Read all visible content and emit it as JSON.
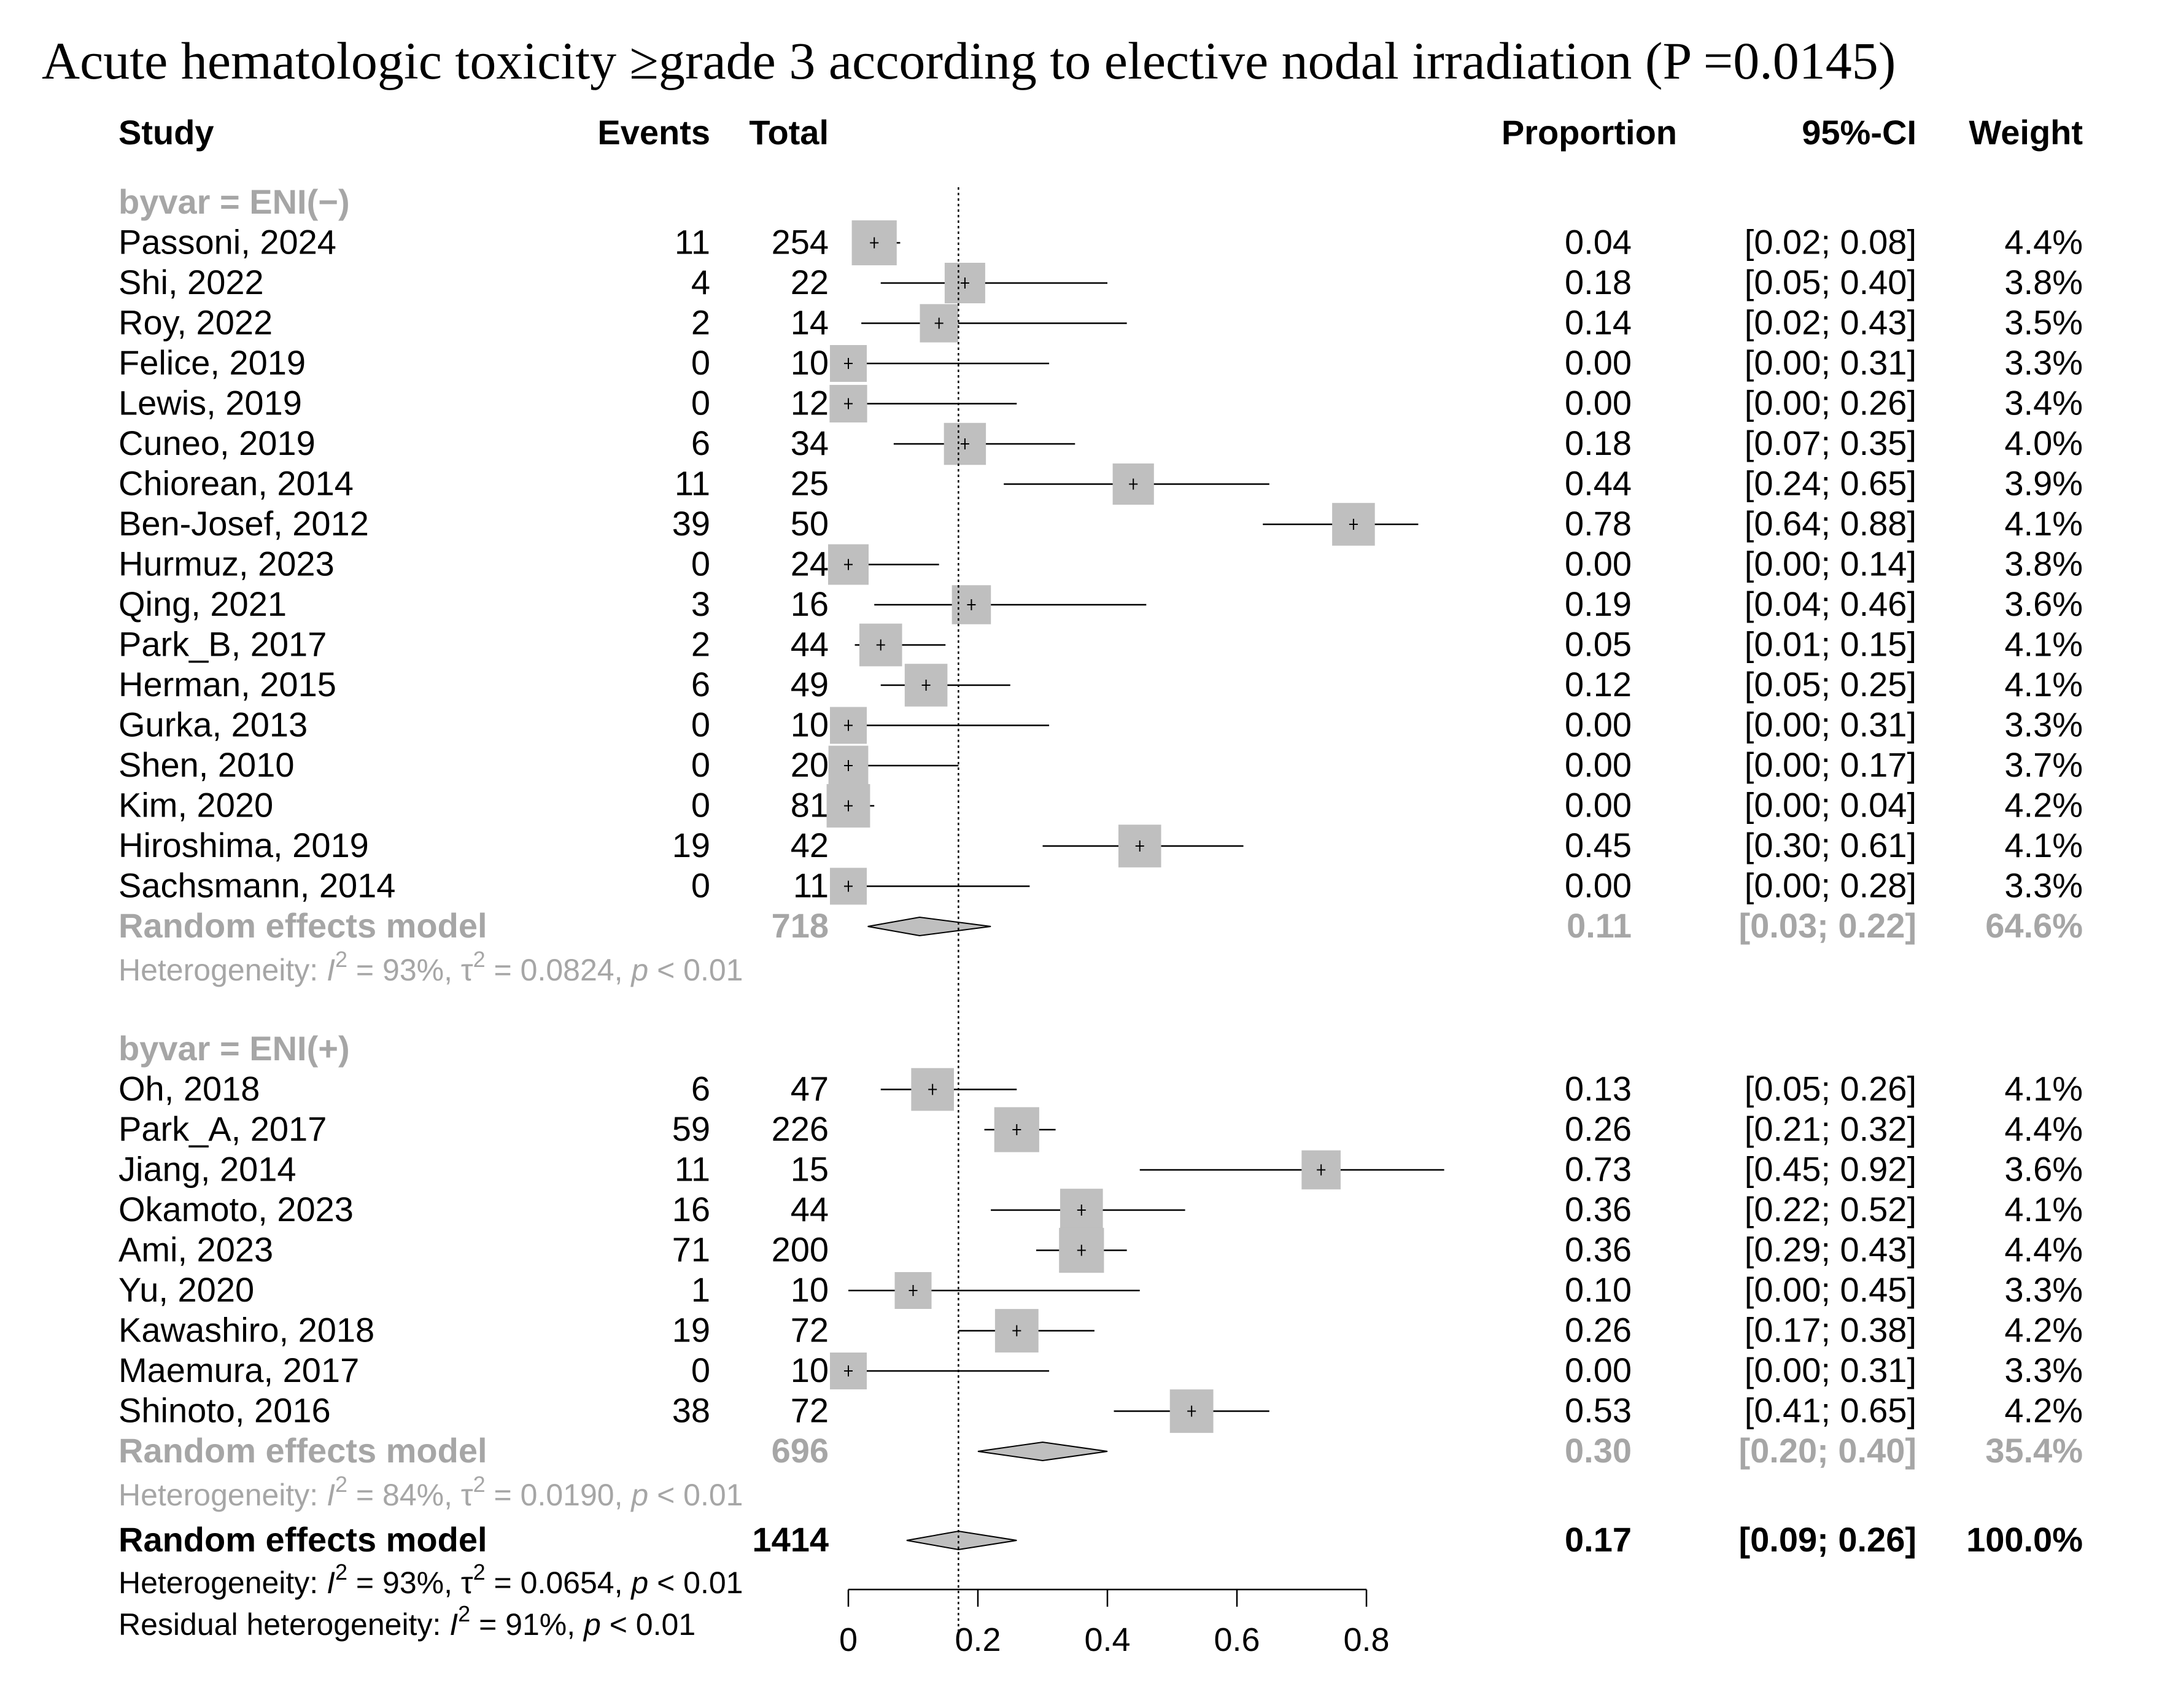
{
  "chart_data": {
    "type": "forest",
    "title": "Acute hematologic toxicity ≥grade 3 according to elective nodal irradiation (P =0.0145)",
    "headers": {
      "study": "Study",
      "events": "Events",
      "total": "Total",
      "proportion": "Proportion",
      "ci": "95%-CI",
      "weight": "Weight"
    },
    "xaxis": {
      "min": 0,
      "max": 0.8,
      "ticks": [
        0,
        0.2,
        0.4,
        0.6,
        0.8
      ],
      "tick_labels": [
        "0",
        "0.2",
        "0.4",
        "0.6",
        "0.8"
      ],
      "reference_line": 0.17
    },
    "groups": [
      {
        "label": "byvar = ENI(−)",
        "studies": [
          {
            "study": "Passoni, 2024",
            "events": "11",
            "total": "254",
            "prop": 0.04,
            "lower": 0.02,
            "upper": 0.08,
            "prop_text": "0.04",
            "ci_text": "[0.02; 0.08]",
            "weight": "4.4%",
            "weight_value": 4.4
          },
          {
            "study": "Shi, 2022",
            "events": "4",
            "total": "22",
            "prop": 0.18,
            "lower": 0.05,
            "upper": 0.4,
            "prop_text": "0.18",
            "ci_text": "[0.05; 0.40]",
            "weight": "3.8%",
            "weight_value": 3.8
          },
          {
            "study": "Roy, 2022",
            "events": "2",
            "total": "14",
            "prop": 0.14,
            "lower": 0.02,
            "upper": 0.43,
            "prop_text": "0.14",
            "ci_text": "[0.02; 0.43]",
            "weight": "3.5%",
            "weight_value": 3.5
          },
          {
            "study": "Felice, 2019",
            "events": "0",
            "total": "10",
            "prop": 0.0,
            "lower": 0.0,
            "upper": 0.31,
            "prop_text": "0.00",
            "ci_text": "[0.00; 0.31]",
            "weight": "3.3%",
            "weight_value": 3.3
          },
          {
            "study": "Lewis, 2019",
            "events": "0",
            "total": "12",
            "prop": 0.0,
            "lower": 0.0,
            "upper": 0.26,
            "prop_text": "0.00",
            "ci_text": "[0.00; 0.26]",
            "weight": "3.4%",
            "weight_value": 3.4
          },
          {
            "study": "Cuneo, 2019",
            "events": "6",
            "total": "34",
            "prop": 0.18,
            "lower": 0.07,
            "upper": 0.35,
            "prop_text": "0.18",
            "ci_text": "[0.07; 0.35]",
            "weight": "4.0%",
            "weight_value": 4.0
          },
          {
            "study": "Chiorean, 2014",
            "events": "11",
            "total": "25",
            "prop": 0.44,
            "lower": 0.24,
            "upper": 0.65,
            "prop_text": "0.44",
            "ci_text": "[0.24; 0.65]",
            "weight": "3.9%",
            "weight_value": 3.9
          },
          {
            "study": "Ben-Josef, 2012",
            "events": "39",
            "total": "50",
            "prop": 0.78,
            "lower": 0.64,
            "upper": 0.88,
            "prop_text": "0.78",
            "ci_text": "[0.64; 0.88]",
            "weight": "4.1%",
            "weight_value": 4.1
          },
          {
            "study": "Hurmuz, 2023",
            "events": "0",
            "total": "24",
            "prop": 0.0,
            "lower": 0.0,
            "upper": 0.14,
            "prop_text": "0.00",
            "ci_text": "[0.00; 0.14]",
            "weight": "3.8%",
            "weight_value": 3.8
          },
          {
            "study": "Qing, 2021",
            "events": "3",
            "total": "16",
            "prop": 0.19,
            "lower": 0.04,
            "upper": 0.46,
            "prop_text": "0.19",
            "ci_text": "[0.04; 0.46]",
            "weight": "3.6%",
            "weight_value": 3.6
          },
          {
            "study": "Park_B, 2017",
            "events": "2",
            "total": "44",
            "prop": 0.05,
            "lower": 0.01,
            "upper": 0.15,
            "prop_text": "0.05",
            "ci_text": "[0.01; 0.15]",
            "weight": "4.1%",
            "weight_value": 4.1
          },
          {
            "study": "Herman, 2015",
            "events": "6",
            "total": "49",
            "prop": 0.12,
            "lower": 0.05,
            "upper": 0.25,
            "prop_text": "0.12",
            "ci_text": "[0.05; 0.25]",
            "weight": "4.1%",
            "weight_value": 4.1
          },
          {
            "study": "Gurka, 2013",
            "events": "0",
            "total": "10",
            "prop": 0.0,
            "lower": 0.0,
            "upper": 0.31,
            "prop_text": "0.00",
            "ci_text": "[0.00; 0.31]",
            "weight": "3.3%",
            "weight_value": 3.3
          },
          {
            "study": "Shen, 2010",
            "events": "0",
            "total": "20",
            "prop": 0.0,
            "lower": 0.0,
            "upper": 0.17,
            "prop_text": "0.00",
            "ci_text": "[0.00; 0.17]",
            "weight": "3.7%",
            "weight_value": 3.7
          },
          {
            "study": "Kim, 2020",
            "events": "0",
            "total": "81",
            "prop": 0.0,
            "lower": 0.0,
            "upper": 0.04,
            "prop_text": "0.00",
            "ci_text": "[0.00; 0.04]",
            "weight": "4.2%",
            "weight_value": 4.2
          },
          {
            "study": "Hiroshima, 2019",
            "events": "19",
            "total": "42",
            "prop": 0.45,
            "lower": 0.3,
            "upper": 0.61,
            "prop_text": "0.45",
            "ci_text": "[0.30; 0.61]",
            "weight": "4.1%",
            "weight_value": 4.1
          },
          {
            "study": "Sachsmann, 2014",
            "events": "0",
            "total": "11",
            "prop": 0.0,
            "lower": 0.0,
            "upper": 0.28,
            "prop_text": "0.00",
            "ci_text": "[0.00; 0.28]",
            "weight": "3.3%",
            "weight_value": 3.3
          }
        ],
        "model": {
          "label": "Random effects model",
          "total": "718",
          "prop": 0.11,
          "lower": 0.03,
          "upper": 0.22,
          "prop_text": "0.11",
          "ci_text": "[0.03; 0.22]",
          "weight": "64.6%"
        },
        "heterogeneity": {
          "prefix": "Heterogeneity: ",
          "I": "I",
          "sup": "2",
          "i2": " = 93%, τ",
          "tau2": " = 0.0824, ",
          "p": "p",
          "ptext": " < 0.01"
        }
      },
      {
        "label": "byvar = ENI(+)",
        "studies": [
          {
            "study": "Oh, 2018",
            "events": "6",
            "total": "47",
            "prop": 0.13,
            "lower": 0.05,
            "upper": 0.26,
            "prop_text": "0.13",
            "ci_text": "[0.05; 0.26]",
            "weight": "4.1%",
            "weight_value": 4.1
          },
          {
            "study": "Park_A, 2017",
            "events": "59",
            "total": "226",
            "prop": 0.26,
            "lower": 0.21,
            "upper": 0.32,
            "prop_text": "0.26",
            "ci_text": "[0.21; 0.32]",
            "weight": "4.4%",
            "weight_value": 4.4
          },
          {
            "study": "Jiang, 2014",
            "events": "11",
            "total": "15",
            "prop": 0.73,
            "lower": 0.45,
            "upper": 0.92,
            "prop_text": "0.73",
            "ci_text": "[0.45; 0.92]",
            "weight": "3.6%",
            "weight_value": 3.6
          },
          {
            "study": "Okamoto, 2023",
            "events": "16",
            "total": "44",
            "prop": 0.36,
            "lower": 0.22,
            "upper": 0.52,
            "prop_text": "0.36",
            "ci_text": "[0.22; 0.52]",
            "weight": "4.1%",
            "weight_value": 4.1
          },
          {
            "study": "Ami, 2023",
            "events": "71",
            "total": "200",
            "prop": 0.36,
            "lower": 0.29,
            "upper": 0.43,
            "prop_text": "0.36",
            "ci_text": "[0.29; 0.43]",
            "weight": "4.4%",
            "weight_value": 4.4
          },
          {
            "study": "Yu, 2020",
            "events": "1",
            "total": "10",
            "prop": 0.1,
            "lower": 0.0,
            "upper": 0.45,
            "prop_text": "0.10",
            "ci_text": "[0.00; 0.45]",
            "weight": "3.3%",
            "weight_value": 3.3
          },
          {
            "study": "Kawashiro, 2018",
            "events": "19",
            "total": "72",
            "prop": 0.26,
            "lower": 0.17,
            "upper": 0.38,
            "prop_text": "0.26",
            "ci_text": "[0.17; 0.38]",
            "weight": "4.2%",
            "weight_value": 4.2
          },
          {
            "study": "Maemura, 2017",
            "events": "0",
            "total": "10",
            "prop": 0.0,
            "lower": 0.0,
            "upper": 0.31,
            "prop_text": "0.00",
            "ci_text": "[0.00; 0.31]",
            "weight": "3.3%",
            "weight_value": 3.3
          },
          {
            "study": "Shinoto, 2016",
            "events": "38",
            "total": "72",
            "prop": 0.53,
            "lower": 0.41,
            "upper": 0.65,
            "prop_text": "0.53",
            "ci_text": "[0.41; 0.65]",
            "weight": "4.2%",
            "weight_value": 4.2
          }
        ],
        "model": {
          "label": "Random effects model",
          "total": "696",
          "prop": 0.3,
          "lower": 0.2,
          "upper": 0.4,
          "prop_text": "0.30",
          "ci_text": "[0.20; 0.40]",
          "weight": "35.4%"
        },
        "heterogeneity": {
          "prefix": "Heterogeneity: ",
          "I": "I",
          "sup": "2",
          "i2": " = 84%, τ",
          "tau2": " = 0.0190, ",
          "p": "p",
          "ptext": " < 0.01"
        }
      }
    ],
    "overall": {
      "model": {
        "label": "Random effects model",
        "total": "1414",
        "prop": 0.17,
        "lower": 0.09,
        "upper": 0.26,
        "prop_text": "0.17",
        "ci_text": "[0.09; 0.26]",
        "weight": "100.0%"
      },
      "heterogeneity": {
        "prefix": "Heterogeneity: ",
        "I": "I",
        "sup": "2",
        "i2": " = 93%, τ",
        "tau2": " = 0.0654, ",
        "p": "p",
        "ptext": " < 0.01"
      },
      "residual": {
        "prefix": "Residual heterogeneity: ",
        "I": "I",
        "sup": "2",
        "i2": " = 91%, ",
        "p": "p",
        "ptext": " < 0.01"
      }
    }
  }
}
